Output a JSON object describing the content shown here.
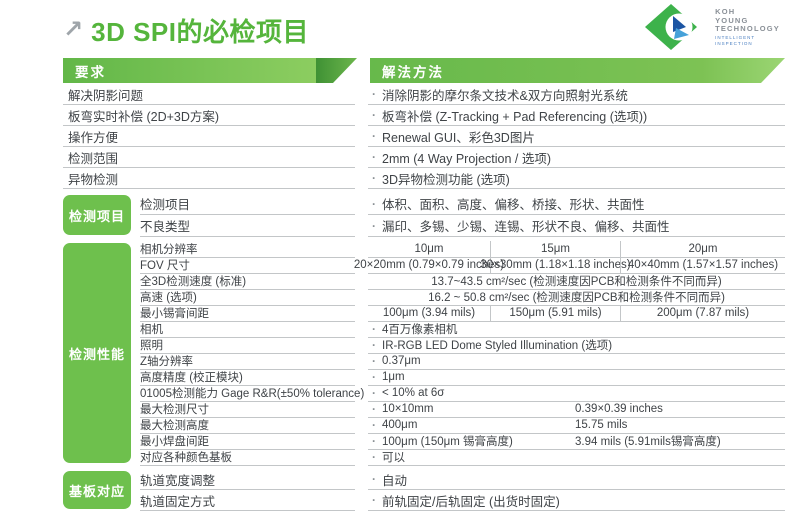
{
  "title": "3D SPI的必检项目",
  "logo": {
    "company_lines": [
      "KOH",
      "YOUNG",
      "TECHNOLOGY"
    ],
    "tagline_lines": [
      "INTELLIGENT",
      "INSPECTION"
    ]
  },
  "table": {
    "headers": {
      "left": "要求",
      "right": "解法方法"
    },
    "sections": [
      {
        "label": "",
        "rows": [
          {
            "type": "bullet",
            "req": "解决阴影问题",
            "sol": "消除阴影的摩尔条文技术&双方向照射光系统"
          },
          {
            "type": "bullet",
            "req": "板弯实时补偿 (2D+3D方案)",
            "sol": "板弯补偿 (Z-Tracking + Pad Referencing (选项))"
          },
          {
            "type": "bullet",
            "req": "操作方便",
            "sol": "Renewal GUI、彩色3D图片"
          },
          {
            "type": "bullet",
            "req": "检测范围",
            "sol": "2mm (4 Way Projection / 选项)"
          },
          {
            "type": "bullet",
            "req": "异物检测",
            "sol": "3D异物检测功能 (选项)"
          }
        ]
      },
      {
        "label": "检测项目",
        "rows": [
          {
            "type": "bullet",
            "req": "检测项目",
            "sol": "体积、面积、高度、偏移、桥接、形状、共面性"
          },
          {
            "type": "bullet",
            "req": "不良类型",
            "sol": "漏印、多锡、少锡、连锡、形状不良、偏移、共面性"
          }
        ]
      },
      {
        "label": "检测性能",
        "rows": [
          {
            "type": "cols3",
            "req": "相机分辨率",
            "cells": [
              "10μm",
              "15μm",
              "20μm"
            ]
          },
          {
            "type": "cols3",
            "req": "FOV 尺寸",
            "cells": [
              "20×20mm (0.79×0.79 inches)",
              "30×30mm (1.18×1.18 inches)",
              "40×40mm (1.57×1.57 inches)"
            ]
          },
          {
            "type": "span",
            "req": "全3D检测速度 (标准)",
            "sol": "13.7~43.5 cm²/sec (检测速度因PCB和检测条件不同而异)"
          },
          {
            "type": "span",
            "req": "高速 (选项)",
            "sol": "16.2 ~ 50.8 cm²/sec (检测速度因PCB和检测条件不同而异)"
          },
          {
            "type": "cols3",
            "req": "最小锡膏间距",
            "cells": [
              "100μm (3.94 mils)",
              "150μm (5.91 mils)",
              "200μm (7.87 mils)"
            ]
          },
          {
            "type": "bullet",
            "req": "相机",
            "sol": "4百万像素相机"
          },
          {
            "type": "bullet",
            "req": "照明",
            "sol": "IR-RGB LED Dome Styled Illumination (选项)"
          },
          {
            "type": "bullet",
            "req": "Z轴分辨率",
            "sol": "0.37μm"
          },
          {
            "type": "bullet",
            "req": "高度精度 (校正模块)",
            "sol": "1μm"
          },
          {
            "type": "bullet",
            "req": "01005检测能力 Gage R&R(±50% tolerance)",
            "sol": "< 10% at 6σ"
          },
          {
            "type": "two",
            "req": "最大检测尺寸",
            "sol": "10×10mm",
            "sol2": "0.39×0.39 inches"
          },
          {
            "type": "two",
            "req": "最大检测高度",
            "sol": "400μm",
            "sol2": "15.75 mils"
          },
          {
            "type": "two",
            "req": "最小焊盘间距",
            "sol": "100μm (150μm 锡膏高度)",
            "sol2": "3.94 mils (5.91mils锡膏高度)"
          },
          {
            "type": "bullet",
            "req": "对应各种颜色基板",
            "sol": "可以"
          }
        ]
      },
      {
        "label": "基板对应",
        "rows": [
          {
            "type": "bullet",
            "req": "轨道宽度调整",
            "sol": "自动"
          },
          {
            "type": "bullet",
            "req": "轨道固定方式",
            "sol": "前轨固定/后轨固定 (出货时固定)"
          }
        ]
      }
    ]
  },
  "colors": {
    "accent_green": "#55b53c",
    "banner_green": "#6cbc4d",
    "label_green": "#6ec04d",
    "logo_blue_dark": "#1c55a3",
    "logo_blue_light": "#46a1d9"
  }
}
